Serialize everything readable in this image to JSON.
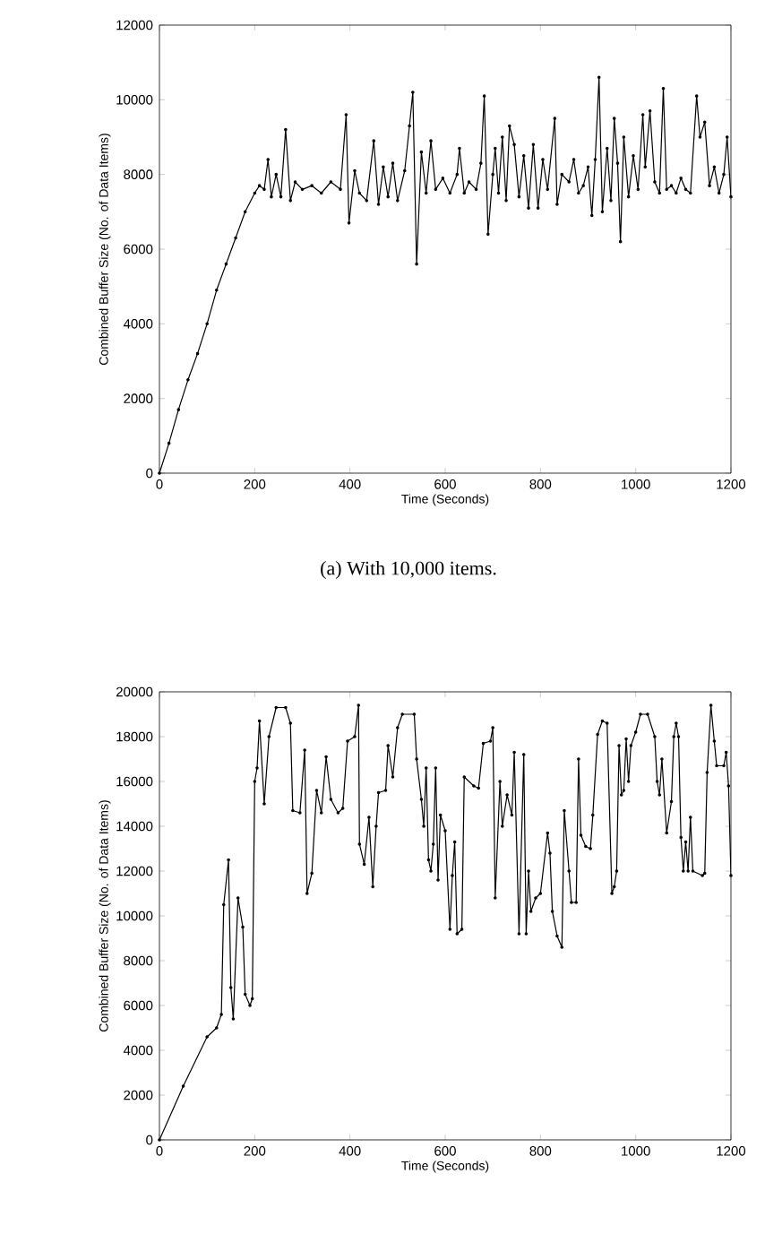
{
  "chart_data": [
    {
      "type": "line",
      "xlabel": "Time (Seconds)",
      "ylabel": "Combined Buffer Size (No. of Data Items)",
      "annotations": [
        "(a)  With 10,000 items."
      ],
      "xlim": [
        0,
        1200
      ],
      "ylim": [
        0,
        12000
      ],
      "xticks": [
        0,
        200,
        400,
        600,
        800,
        1000,
        1200
      ],
      "yticks": [
        0,
        2000,
        4000,
        6000,
        8000,
        10000,
        12000
      ],
      "marker": "circle",
      "line_style": "solid",
      "x": [
        0,
        20,
        40,
        60,
        80,
        100,
        120,
        140,
        160,
        180,
        200,
        210,
        220,
        228,
        235,
        245,
        255,
        265,
        275,
        285,
        300,
        320,
        340,
        360,
        380,
        392,
        398,
        410,
        420,
        435,
        450,
        460,
        470,
        480,
        490,
        500,
        515,
        525,
        532,
        540,
        550,
        560,
        570,
        580,
        595,
        610,
        625,
        630,
        640,
        650,
        665,
        675,
        682,
        690,
        700,
        705,
        712,
        720,
        728,
        735,
        745,
        755,
        765,
        775,
        785,
        795,
        805,
        815,
        830,
        835,
        845,
        860,
        870,
        880,
        890,
        900,
        908,
        915,
        923,
        930,
        940,
        948,
        955,
        962,
        968,
        975,
        985,
        995,
        1005,
        1015,
        1020,
        1030,
        1040,
        1050,
        1058,
        1065,
        1075,
        1085,
        1095,
        1105,
        1115,
        1128,
        1135,
        1145,
        1155,
        1165,
        1175,
        1185,
        1192,
        1200
      ],
      "series": [
        {
          "color": "#000000",
          "values": [
            0,
            800,
            1700,
            2500,
            3200,
            4000,
            4900,
            5600,
            6300,
            7000,
            7500,
            7700,
            7600,
            8400,
            7400,
            8000,
            7400,
            9200,
            7300,
            7800,
            7600,
            7700,
            7500,
            7800,
            7600,
            9600,
            6700,
            8100,
            7500,
            7300,
            8900,
            7200,
            8200,
            7400,
            8300,
            7300,
            8100,
            9300,
            10200,
            5600,
            8600,
            7500,
            8900,
            7600,
            7900,
            7500,
            8000,
            8700,
            7500,
            7800,
            7600,
            8300,
            10100,
            6400,
            8000,
            8700,
            7500,
            9000,
            7300,
            9300,
            8800,
            7400,
            8500,
            7100,
            8800,
            7100,
            8400,
            7600,
            9500,
            7200,
            8000,
            7800,
            8400,
            7500,
            7700,
            8200,
            6900,
            8400,
            10600,
            7000,
            8700,
            7300,
            9500,
            8300,
            6200,
            9000,
            7400,
            8500,
            7600,
            9600,
            8200,
            9700,
            7800,
            7500,
            10300,
            7600,
            7700,
            7500,
            7900,
            7600,
            7500,
            10100,
            9000,
            9400,
            7700,
            8200,
            7500,
            8000,
            9000,
            7400
          ]
        }
      ]
    },
    {
      "type": "line",
      "xlabel": "Time (Seconds)",
      "ylabel": "Combined Buffer Size (No. of Data Items)",
      "xlim": [
        0,
        1200
      ],
      "ylim": [
        0,
        20000
      ],
      "xticks": [
        0,
        200,
        400,
        600,
        800,
        1000,
        1200
      ],
      "yticks": [
        0,
        2000,
        4000,
        6000,
        8000,
        10000,
        12000,
        14000,
        16000,
        18000,
        20000
      ],
      "marker": "circle",
      "line_style": "solid",
      "x": [
        0,
        50,
        100,
        120,
        130,
        135,
        145,
        150,
        155,
        165,
        175,
        180,
        190,
        195,
        200,
        205,
        210,
        220,
        230,
        245,
        265,
        275,
        280,
        295,
        305,
        310,
        320,
        330,
        340,
        350,
        360,
        375,
        385,
        395,
        410,
        418,
        420,
        430,
        440,
        448,
        455,
        460,
        475,
        480,
        490,
        500,
        510,
        535,
        540,
        550,
        555,
        560,
        565,
        570,
        575,
        580,
        585,
        590,
        600,
        610,
        615,
        620,
        625,
        635,
        640,
        660,
        670,
        680,
        695,
        700,
        705,
        715,
        720,
        730,
        740,
        745,
        755,
        765,
        770,
        775,
        780,
        790,
        800,
        815,
        820,
        825,
        835,
        845,
        850,
        860,
        865,
        875,
        880,
        885,
        895,
        905,
        910,
        920,
        930,
        940,
        950,
        955,
        960,
        965,
        970,
        975,
        980,
        985,
        990,
        1000,
        1010,
        1025,
        1040,
        1045,
        1050,
        1055,
        1065,
        1075,
        1080,
        1085,
        1090,
        1095,
        1100,
        1105,
        1110,
        1115,
        1120,
        1140,
        1145,
        1150,
        1158,
        1165,
        1170,
        1185,
        1190,
        1195,
        1200
      ],
      "series": [
        {
          "color": "#000000",
          "values": [
            0,
            2400,
            4600,
            5000,
            5600,
            10500,
            12500,
            6800,
            5400,
            10800,
            9500,
            6500,
            6000,
            6300,
            16000,
            16600,
            18700,
            15000,
            18000,
            19300,
            19300,
            18600,
            14700,
            14600,
            17400,
            11000,
            11900,
            15600,
            14600,
            17100,
            15200,
            14600,
            14800,
            17800,
            18000,
            19400,
            13200,
            12300,
            14400,
            11300,
            14000,
            15500,
            15600,
            17600,
            16200,
            18400,
            19000,
            19000,
            17000,
            15200,
            14000,
            16600,
            12500,
            12000,
            13200,
            16600,
            11600,
            14500,
            13800,
            9400,
            11800,
            13300,
            9200,
            9400,
            16200,
            15800,
            15700,
            17700,
            17800,
            18400,
            10800,
            16000,
            14000,
            15400,
            14500,
            17300,
            9200,
            17200,
            9200,
            12000,
            10200,
            10800,
            11000,
            13700,
            12800,
            10200,
            9100,
            8600,
            14700,
            12000,
            10600,
            10600,
            17000,
            13600,
            13100,
            13000,
            14500,
            18100,
            18700,
            18600,
            11000,
            11300,
            12000,
            17600,
            15400,
            15600,
            17900,
            16000,
            17600,
            18200,
            19000,
            19000,
            18000,
            16000,
            15400,
            17000,
            13700,
            15100,
            18000,
            18600,
            18000,
            13500,
            12000,
            13300,
            12000,
            14400,
            12000,
            11800,
            11900,
            16400,
            19400,
            17800,
            16700,
            16700,
            17300,
            15800,
            11800
          ]
        }
      ]
    }
  ]
}
